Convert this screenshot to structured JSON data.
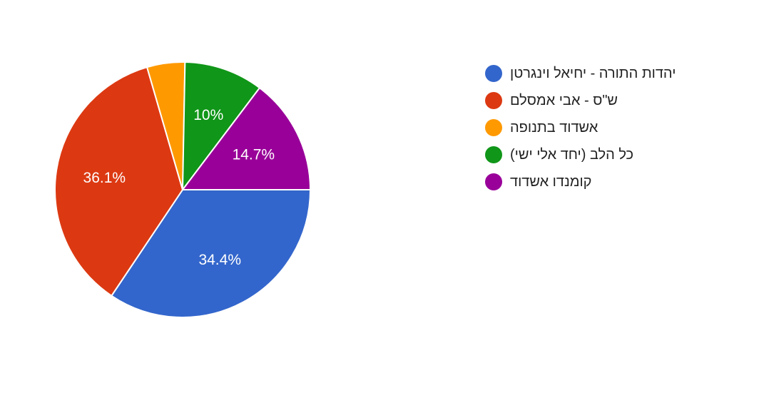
{
  "chart_data": {
    "type": "pie",
    "categories": [
      "יהדות התורה - יחיאל וינגרטן",
      "ש\"ס - אבי אמסלם",
      "אשדוד בתנופה",
      "כל הלב (יחד אלי ישי)",
      "קומנדו אשדוד"
    ],
    "values": [
      34.4,
      36.1,
      4.8,
      10,
      14.7
    ],
    "labels": [
      "34.4%",
      "36.1%",
      "",
      "10%",
      "14.7%"
    ],
    "colors": [
      "#3366cc",
      "#dc3912",
      "#ff9900",
      "#109618",
      "#990099"
    ],
    "legend_position": "right",
    "start": "3 o'clock",
    "direction": "clockwise"
  }
}
